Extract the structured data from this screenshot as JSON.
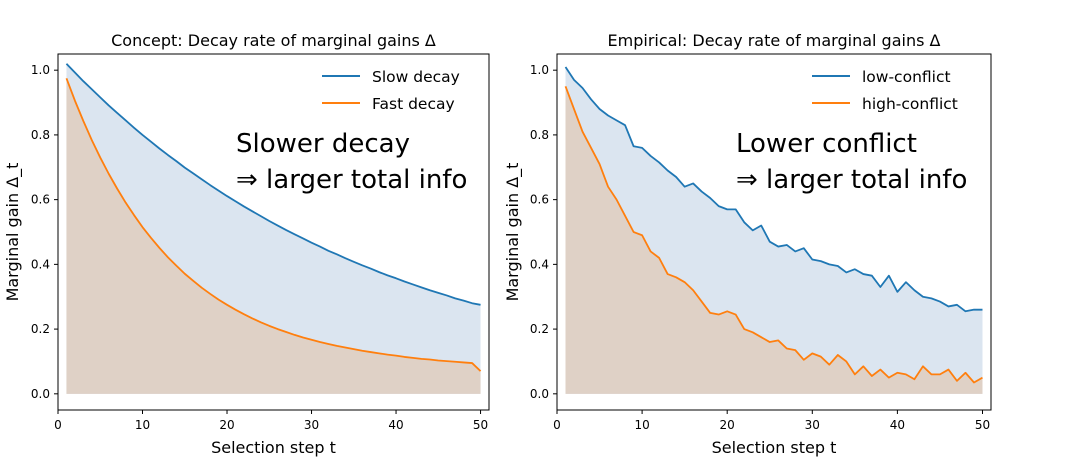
{
  "chart_data": [
    {
      "type": "line",
      "title": "Concept: Decay rate of marginal gains Δ",
      "xlabel": "Selection step t",
      "ylabel": "Marginal gain Δ_t",
      "xlim": [
        0,
        51
      ],
      "ylim": [
        -0.05,
        1.05
      ],
      "xticks": [
        0,
        10,
        20,
        30,
        40,
        50
      ],
      "yticks": [
        "0.0",
        "0.2",
        "0.4",
        "0.6",
        "0.8",
        "1.0"
      ],
      "grid": false,
      "legend_position": "top-right",
      "area_fill": true,
      "series": [
        {
          "name": "Slow decay",
          "color": "#1f77b4",
          "fill_color": "#dbe5f0",
          "x": [
            1,
            2,
            3,
            4,
            5,
            6,
            7,
            8,
            9,
            10,
            11,
            12,
            13,
            14,
            15,
            16,
            17,
            18,
            19,
            20,
            21,
            22,
            23,
            24,
            25,
            26,
            27,
            28,
            29,
            30,
            31,
            32,
            33,
            34,
            35,
            36,
            37,
            38,
            39,
            40,
            41,
            42,
            43,
            44,
            45,
            46,
            47,
            48,
            49,
            50
          ],
          "y": [
            1.02,
            0.993,
            0.966,
            0.941,
            0.916,
            0.891,
            0.868,
            0.845,
            0.822,
            0.8,
            0.779,
            0.758,
            0.738,
            0.719,
            0.699,
            0.681,
            0.663,
            0.645,
            0.628,
            0.611,
            0.595,
            0.579,
            0.564,
            0.549,
            0.534,
            0.52,
            0.506,
            0.493,
            0.48,
            0.467,
            0.455,
            0.442,
            0.431,
            0.419,
            0.408,
            0.397,
            0.387,
            0.376,
            0.366,
            0.357,
            0.347,
            0.338,
            0.329,
            0.32,
            0.312,
            0.304,
            0.295,
            0.288,
            0.28,
            0.275
          ]
        },
        {
          "name": "Fast decay",
          "color": "#ff7f0e",
          "fill_color": "#dfd1c6",
          "x": [
            1,
            2,
            3,
            4,
            5,
            6,
            7,
            8,
            9,
            10,
            11,
            12,
            13,
            14,
            15,
            16,
            17,
            18,
            19,
            20,
            21,
            22,
            23,
            24,
            25,
            26,
            27,
            28,
            29,
            30,
            31,
            32,
            33,
            34,
            35,
            36,
            37,
            38,
            39,
            40,
            41,
            42,
            43,
            44,
            45,
            46,
            47,
            48,
            49,
            50
          ],
          "y": [
            0.975,
            0.906,
            0.843,
            0.784,
            0.73,
            0.68,
            0.634,
            0.591,
            0.552,
            0.515,
            0.482,
            0.451,
            0.422,
            0.396,
            0.371,
            0.349,
            0.328,
            0.309,
            0.291,
            0.275,
            0.26,
            0.246,
            0.233,
            0.221,
            0.21,
            0.2,
            0.191,
            0.182,
            0.174,
            0.167,
            0.16,
            0.154,
            0.148,
            0.143,
            0.138,
            0.133,
            0.129,
            0.125,
            0.121,
            0.118,
            0.114,
            0.111,
            0.108,
            0.106,
            0.103,
            0.101,
            0.099,
            0.097,
            0.095,
            0.07
          ]
        }
      ],
      "annotations": [
        "Slower decay",
        "⇒ larger total info"
      ]
    },
    {
      "type": "line",
      "title": "Empirical: Decay rate of marginal gains Δ",
      "xlabel": "Selection step t",
      "ylabel": "Marginal gain Δ_t",
      "xlim": [
        0,
        51
      ],
      "ylim": [
        -0.05,
        1.05
      ],
      "xticks": [
        0,
        10,
        20,
        30,
        40,
        50
      ],
      "yticks": [
        "0.0",
        "0.2",
        "0.4",
        "0.6",
        "0.8",
        "1.0"
      ],
      "grid": false,
      "legend_position": "top-right",
      "area_fill": true,
      "series": [
        {
          "name": "low-conflict",
          "color": "#1f77b4",
          "fill_color": "#dbe5f0",
          "x": [
            1,
            2,
            3,
            4,
            5,
            6,
            7,
            8,
            9,
            10,
            11,
            12,
            13,
            14,
            15,
            16,
            17,
            18,
            19,
            20,
            21,
            22,
            23,
            24,
            25,
            26,
            27,
            28,
            29,
            30,
            31,
            32,
            33,
            34,
            35,
            36,
            37,
            38,
            39,
            40,
            41,
            42,
            43,
            44,
            45,
            46,
            47,
            48,
            49,
            50
          ],
          "y": [
            1.01,
            0.97,
            0.945,
            0.91,
            0.88,
            0.86,
            0.845,
            0.83,
            0.765,
            0.76,
            0.735,
            0.715,
            0.69,
            0.67,
            0.64,
            0.65,
            0.625,
            0.605,
            0.58,
            0.57,
            0.57,
            0.53,
            0.505,
            0.52,
            0.47,
            0.455,
            0.46,
            0.44,
            0.45,
            0.415,
            0.41,
            0.4,
            0.395,
            0.375,
            0.385,
            0.37,
            0.365,
            0.33,
            0.365,
            0.315,
            0.345,
            0.32,
            0.3,
            0.295,
            0.285,
            0.27,
            0.275,
            0.255,
            0.26,
            0.26
          ]
        },
        {
          "name": "high-conflict",
          "color": "#ff7f0e",
          "fill_color": "#dfd1c6",
          "x": [
            1,
            2,
            3,
            4,
            5,
            6,
            7,
            8,
            9,
            10,
            11,
            12,
            13,
            14,
            15,
            16,
            17,
            18,
            19,
            20,
            21,
            22,
            23,
            24,
            25,
            26,
            27,
            28,
            29,
            30,
            31,
            32,
            33,
            34,
            35,
            36,
            37,
            38,
            39,
            40,
            41,
            42,
            43,
            44,
            45,
            46,
            47,
            48,
            49,
            50
          ],
          "y": [
            0.95,
            0.88,
            0.81,
            0.76,
            0.71,
            0.64,
            0.6,
            0.55,
            0.5,
            0.49,
            0.44,
            0.42,
            0.37,
            0.36,
            0.345,
            0.32,
            0.285,
            0.25,
            0.245,
            0.255,
            0.245,
            0.2,
            0.19,
            0.175,
            0.16,
            0.165,
            0.14,
            0.135,
            0.105,
            0.125,
            0.115,
            0.09,
            0.12,
            0.1,
            0.06,
            0.085,
            0.055,
            0.075,
            0.05,
            0.065,
            0.06,
            0.045,
            0.085,
            0.06,
            0.06,
            0.075,
            0.04,
            0.065,
            0.035,
            0.05
          ]
        }
      ],
      "annotations": [
        "Lower conflict",
        "⇒ larger total info"
      ]
    }
  ]
}
